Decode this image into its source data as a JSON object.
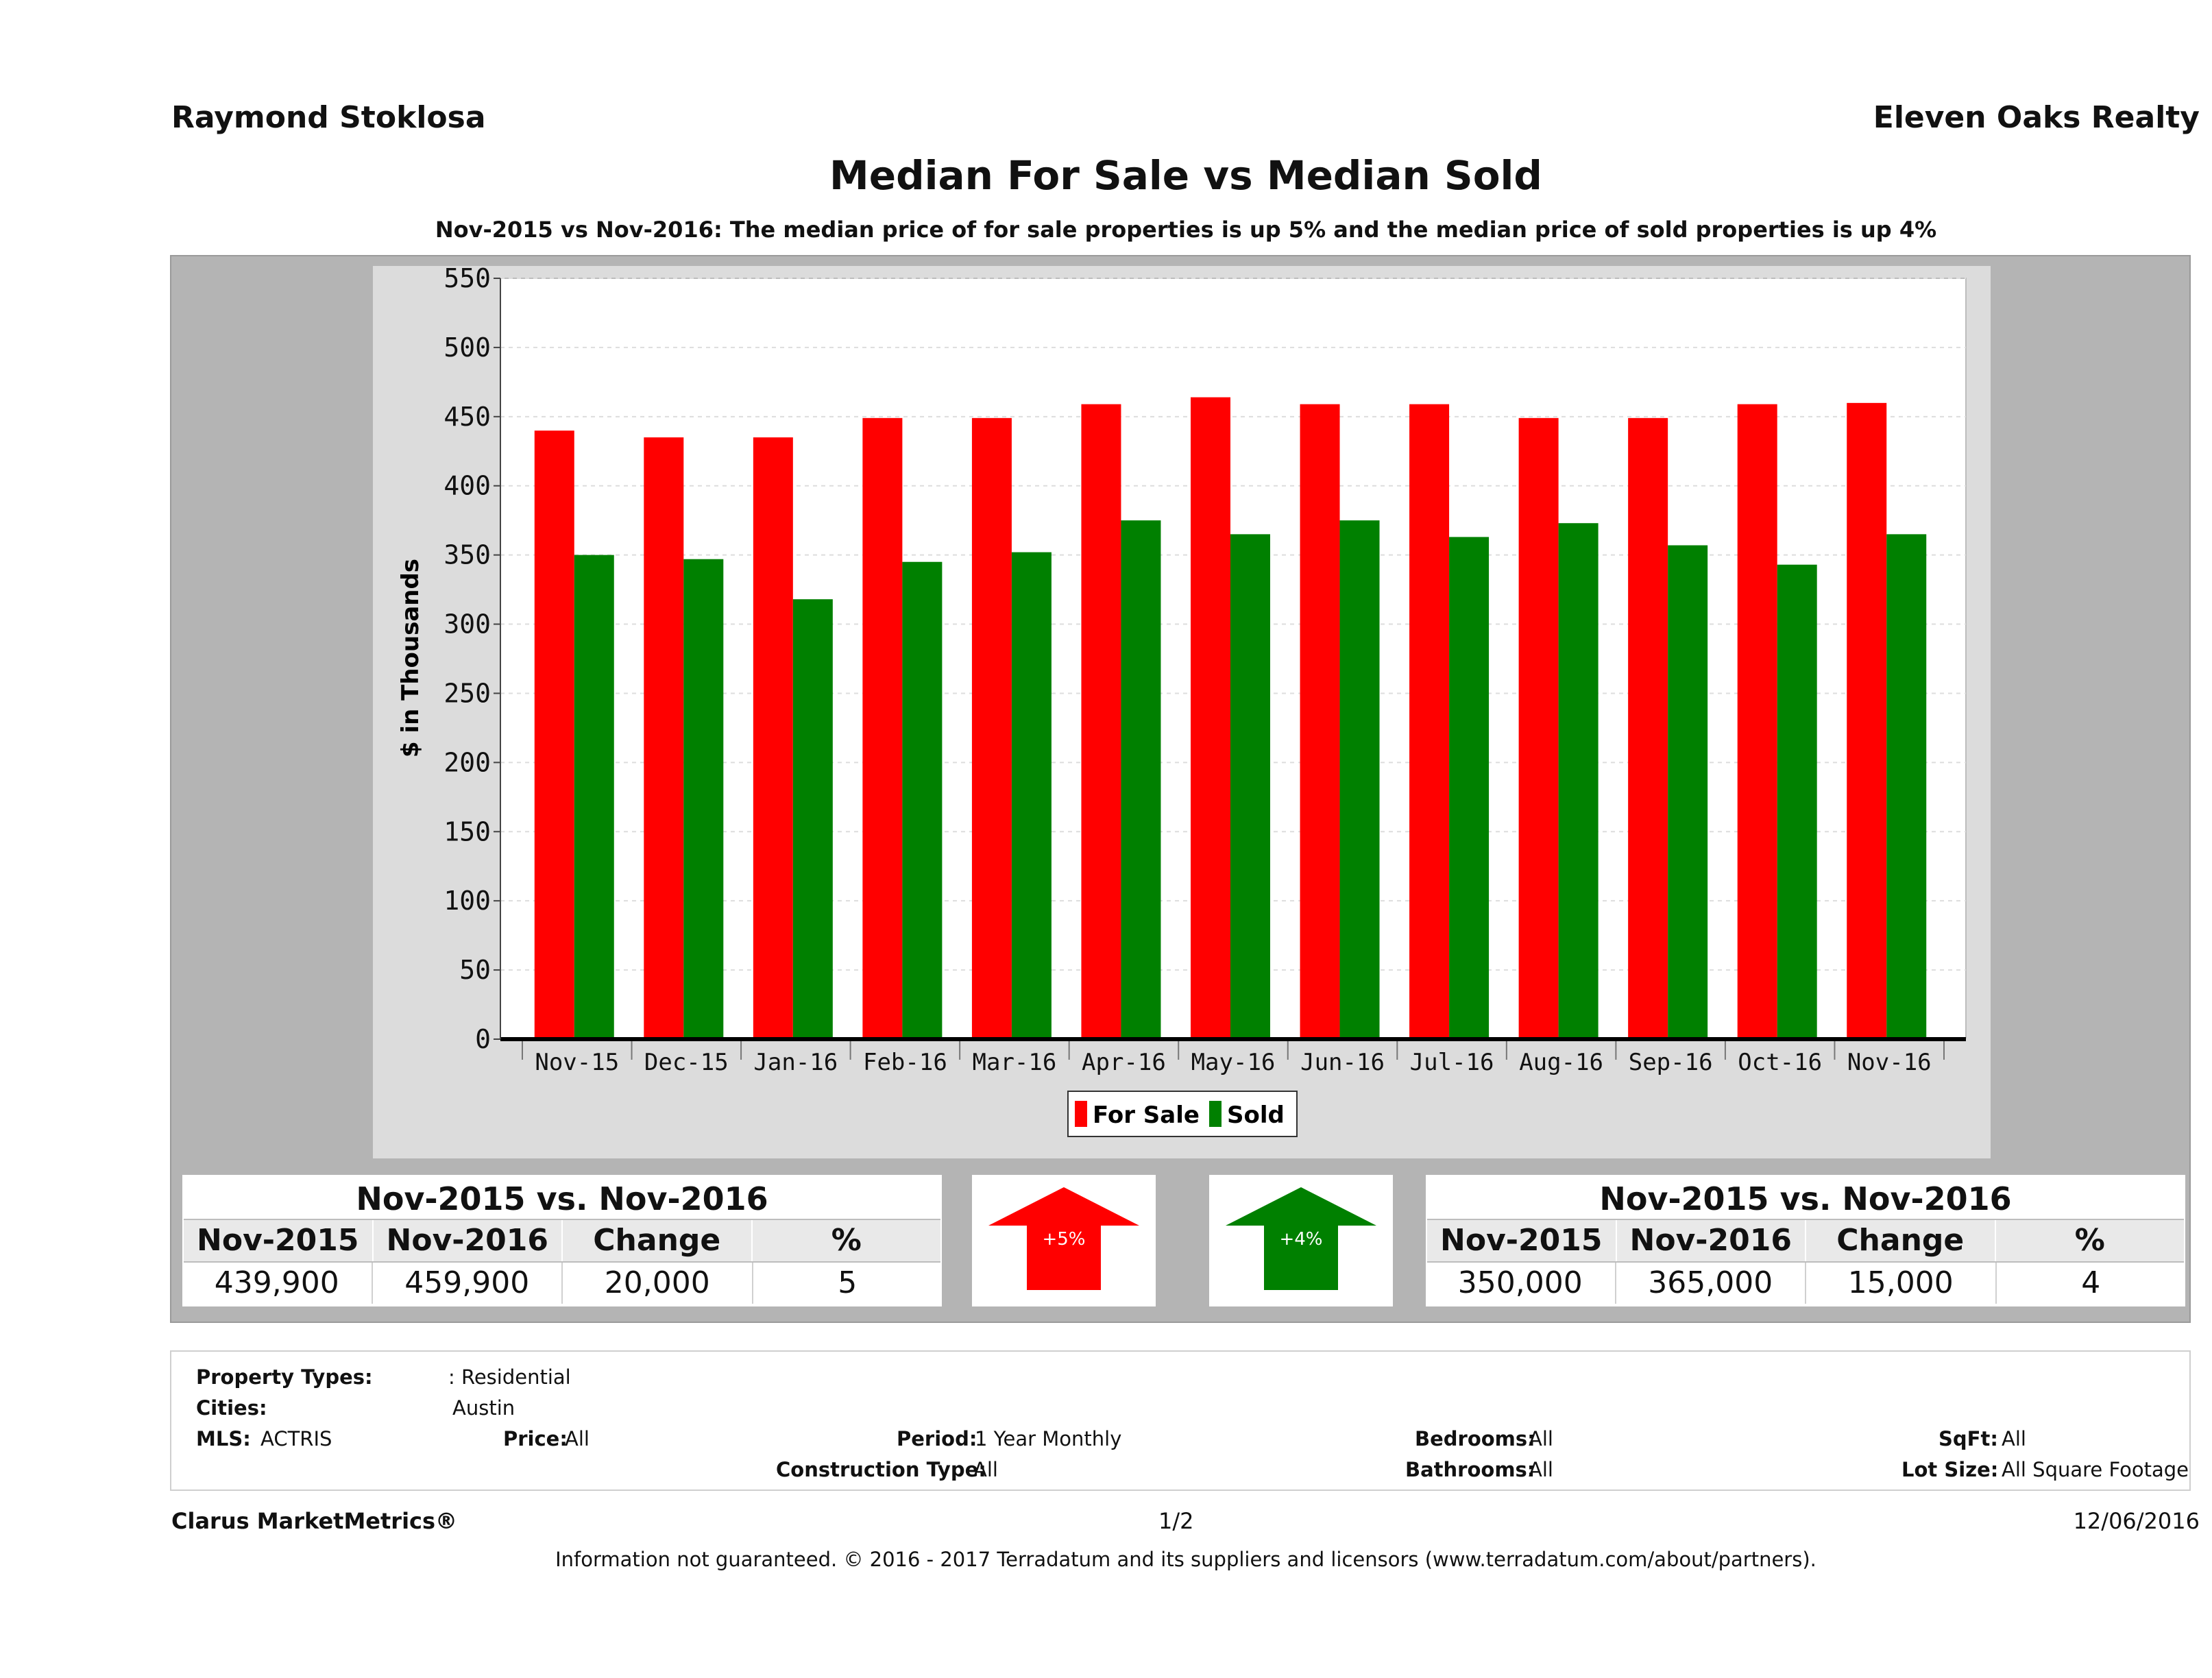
{
  "header": {
    "agent_name": "Raymond Stoklosa",
    "company": "Eleven Oaks Realty",
    "title": "Median For Sale vs Median Sold",
    "subtitle": "Nov-2015 vs Nov-2016: The median price of for sale properties is up 5% and the median price of sold properties is up 4%"
  },
  "chart_data": {
    "type": "bar",
    "title": "Median For Sale vs Median Sold",
    "ylabel": "$ in Thousands",
    "xlabel": "",
    "ylim": [
      0,
      550
    ],
    "yticks": [
      0,
      50,
      100,
      150,
      200,
      250,
      300,
      350,
      400,
      450,
      500,
      550
    ],
    "grid": true,
    "legend": "bottom-center",
    "categories": [
      "Nov-15",
      "Dec-15",
      "Jan-16",
      "Feb-16",
      "Mar-16",
      "Apr-16",
      "May-16",
      "Jun-16",
      "Jul-16",
      "Aug-16",
      "Sep-16",
      "Oct-16",
      "Nov-16"
    ],
    "series": [
      {
        "name": "For Sale",
        "color": "#ff0000",
        "values": [
          439.9,
          435,
          435,
          449,
          449,
          459,
          464,
          459,
          459,
          449,
          449,
          459,
          459.9
        ]
      },
      {
        "name": "Sold",
        "color": "#008000",
        "values": [
          350,
          347,
          318,
          345,
          352,
          375,
          365,
          375,
          363,
          373,
          357,
          343,
          365
        ]
      }
    ]
  },
  "stats": {
    "for_sale": {
      "heading": "Nov-2015 vs. Nov-2016",
      "columns": [
        "Nov-2015",
        "Nov-2016",
        "Change",
        "%"
      ],
      "values": [
        "439,900",
        "459,900",
        "20,000",
        "5"
      ],
      "arrow_label": "+5%",
      "arrow_color": "#ff0000"
    },
    "sold": {
      "heading": "Nov-2015 vs. Nov-2016",
      "columns": [
        "Nov-2015",
        "Nov-2016",
        "Change",
        "%"
      ],
      "values": [
        "350,000",
        "365,000",
        "15,000",
        "4"
      ],
      "arrow_label": "+4%",
      "arrow_color": "#008000"
    }
  },
  "criteria": {
    "property_types_label": "Property Types:",
    "property_types_value": ": Residential",
    "cities_label": "Cities:",
    "cities_value": "Austin",
    "mls_label": "MLS:",
    "mls_value": "ACTRIS",
    "price_label": "Price:",
    "price_value": "All",
    "period_label": "Period:",
    "period_value": "1 Year Monthly",
    "construction_label": "Construction Type:",
    "construction_value": "All",
    "bedrooms_label": "Bedrooms:",
    "bedrooms_value": "All",
    "bathrooms_label": "Bathrooms:",
    "bathrooms_value": "All",
    "sqft_label": "SqFt:",
    "sqft_value": "All",
    "lotsize_label": "Lot Size:",
    "lotsize_value": "All Square Footage"
  },
  "footer": {
    "brand": "Clarus MarketMetrics®",
    "page": "1/2",
    "date": "12/06/2016",
    "disclaimer": "Information not guaranteed. © 2016 - 2017 Terradatum and its suppliers and licensors (www.terradatum.com/about/partners)."
  }
}
